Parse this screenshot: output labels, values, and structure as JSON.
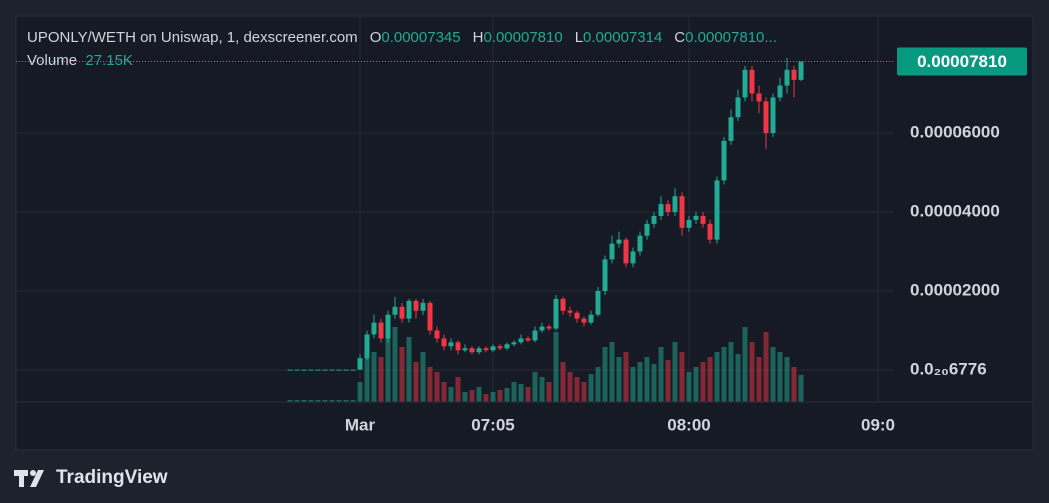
{
  "chart_data": {
    "type": "candlestick",
    "title": "UPONLY/WETH on Uniswap, 1, dexscreener.com",
    "ohlc_legend": [
      {
        "key": "O",
        "value": "0.00007345"
      },
      {
        "key": "H",
        "value": "0.00007810"
      },
      {
        "key": "L",
        "value": "0.00007314"
      },
      {
        "key": "C",
        "value": "0.00007810..."
      }
    ],
    "volume_label": "Volume",
    "volume_value_label": "27.15K",
    "categories": [
      null,
      null,
      null,
      null,
      null,
      null,
      null,
      null,
      null,
      null,
      "Mar",
      null,
      null,
      null,
      null,
      null,
      null,
      null,
      null,
      null,
      null,
      null,
      null,
      null,
      null,
      null,
      null,
      null,
      null,
      "07:05",
      null,
      null,
      null,
      null,
      null,
      null,
      null,
      null,
      null,
      null,
      null,
      null,
      null,
      null,
      null,
      null,
      null,
      null,
      null,
      null,
      null,
      null,
      null,
      null,
      null,
      null,
      null,
      "08:00",
      null,
      null,
      null,
      null,
      null,
      null,
      null,
      null,
      null,
      null,
      null,
      null,
      null,
      null,
      null,
      null,
      null,
      null,
      null,
      null,
      null,
      null,
      null,
      null,
      null,
      null,
      "09:0"
    ],
    "open": [
      1e-07,
      1e-07,
      1e-07,
      1e-07,
      1e-07,
      1e-07,
      1e-07,
      1e-07,
      1e-07,
      1e-07,
      1e-07,
      3e-06,
      9e-06,
      1.2e-05,
      8e-06,
      1.4e-05,
      1.6e-05,
      1.3e-05,
      1.75e-05,
      1.5e-05,
      1.7e-05,
      1e-05,
      8e-06,
      6e-06,
      7e-06,
      5e-06,
      5.5e-06,
      4.5e-06,
      5.5e-06,
      5e-06,
      6e-06,
      5.5e-06,
      6.5e-06,
      7e-06,
      8e-06,
      7.5e-06,
      1e-05,
      1.1e-05,
      1.05e-05,
      1.8e-05,
      1.5e-05,
      1.45e-05,
      1.3e-05,
      1.2e-05,
      1.4e-05,
      2e-05,
      2.8e-05,
      3.2e-05,
      3.3e-05,
      2.7e-05,
      3e-05,
      3.4e-05,
      3.7e-05,
      3.9e-05,
      4.2e-05,
      4e-05,
      4.4e-05,
      3.6e-05,
      3.8e-05,
      3.9e-05,
      3.7e-05,
      3.3e-05,
      4.8e-05,
      5.8e-05,
      6.4e-05,
      6.9e-05,
      7.6e-05,
      7e-05,
      6.8e-05,
      6e-05,
      6.9e-05,
      7.2e-05,
      7.6e-05,
      7.345e-05,
      null,
      null,
      null,
      null,
      null,
      null,
      null,
      null,
      null,
      null,
      null
    ],
    "high": [
      1e-07,
      1e-07,
      1e-07,
      1e-07,
      1e-07,
      1e-07,
      1e-07,
      1e-07,
      1e-07,
      1e-07,
      4e-06,
      1e-05,
      1.4e-05,
      1.3e-05,
      1.5e-05,
      1.85e-05,
      1.7e-05,
      1.8e-05,
      1.8e-05,
      1.8e-05,
      1.75e-05,
      1.1e-05,
      9e-06,
      8e-06,
      7.5e-06,
      6.5e-06,
      6e-06,
      6e-06,
      6e-06,
      6.5e-06,
      6.5e-06,
      7e-06,
      7.5e-06,
      9e-06,
      8.5e-06,
      1.1e-05,
      1.2e-05,
      1.15e-05,
      1.9e-05,
      1.85e-05,
      1.6e-05,
      1.5e-05,
      1.35e-05,
      1.5e-05,
      2.1e-05,
      2.9e-05,
      3.4e-05,
      3.5e-05,
      3.35e-05,
      3.1e-05,
      3.5e-05,
      3.8e-05,
      4e-05,
      4.4e-05,
      4.3e-05,
      4.6e-05,
      4.5e-05,
      3.9e-05,
      4e-05,
      4e-05,
      3.8e-05,
      4.9e-05,
      5.9e-05,
      6.6e-05,
      7.1e-05,
      7.7e-05,
      7.7e-05,
      7.2e-05,
      6.9e-05,
      7e-05,
      7.4e-05,
      7.9e-05,
      7.7e-05,
      7.81e-05,
      null,
      null,
      null,
      null,
      null,
      null,
      null,
      null,
      null,
      null,
      null
    ],
    "low": [
      1e-07,
      1e-07,
      1e-07,
      1e-07,
      1e-07,
      1e-07,
      1e-07,
      1e-07,
      1e-07,
      1e-07,
      1e-07,
      2.5e-06,
      8e-06,
      7e-06,
      7e-06,
      1.3e-05,
      1.2e-05,
      1.2e-05,
      1.3e-05,
      1.4e-05,
      9e-06,
      7e-06,
      5e-06,
      5e-06,
      4e-06,
      4.5e-06,
      4e-06,
      4e-06,
      4.5e-06,
      4.5e-06,
      5e-06,
      5e-06,
      6e-06,
      6.5e-06,
      7e-06,
      7e-06,
      9.5e-06,
      1e-05,
      1e-05,
      1.4e-05,
      1.35e-05,
      1.2e-05,
      1.1e-05,
      1.15e-05,
      1.35e-05,
      1.9e-05,
      2.7e-05,
      3.1e-05,
      2.6e-05,
      2.6e-05,
      2.9e-05,
      3.3e-05,
      3.6e-05,
      3.8e-05,
      3.9e-05,
      3.9e-05,
      3.4e-05,
      3.5e-05,
      3.7e-05,
      3.6e-05,
      3.2e-05,
      3.2e-05,
      4.7e-05,
      5.7e-05,
      6.3e-05,
      6.8e-05,
      6.8e-05,
      6.5e-05,
      5.6e-05,
      5.9e-05,
      6.8e-05,
      7e-05,
      6.9e-05,
      7.314e-05,
      null,
      null,
      null,
      null,
      null,
      null,
      null,
      null,
      null,
      null,
      null
    ],
    "close": [
      1e-07,
      1e-07,
      1e-07,
      1e-07,
      1e-07,
      1e-07,
      1e-07,
      1e-07,
      1e-07,
      1e-07,
      3e-06,
      9e-06,
      1.2e-05,
      8e-06,
      1.4e-05,
      1.6e-05,
      1.3e-05,
      1.75e-05,
      1.5e-05,
      1.7e-05,
      1e-05,
      8e-06,
      6e-06,
      7e-06,
      5e-06,
      5.5e-06,
      4.5e-06,
      5.5e-06,
      5e-06,
      6e-06,
      5.5e-06,
      6.5e-06,
      7e-06,
      8e-06,
      7.5e-06,
      1e-05,
      1.1e-05,
      1.05e-05,
      1.8e-05,
      1.5e-05,
      1.45e-05,
      1.3e-05,
      1.2e-05,
      1.4e-05,
      2e-05,
      2.8e-05,
      3.2e-05,
      3.3e-05,
      2.7e-05,
      3e-05,
      3.4e-05,
      3.7e-05,
      3.9e-05,
      4.2e-05,
      4e-05,
      4.4e-05,
      3.6e-05,
      3.8e-05,
      3.9e-05,
      3.7e-05,
      3.3e-05,
      4.8e-05,
      5.8e-05,
      6.4e-05,
      6.9e-05,
      7.6e-05,
      7e-05,
      6.8e-05,
      6e-05,
      6.9e-05,
      7.2e-05,
      7.6e-05,
      7.345e-05,
      7.81e-05,
      null,
      null,
      null,
      null,
      null,
      null,
      null,
      null,
      null,
      null,
      null
    ],
    "volume": [
      2000,
      2000,
      2000,
      2000,
      2000,
      2000,
      2000,
      2000,
      2000,
      2000,
      20000,
      60000,
      50000,
      45000,
      70000,
      75000,
      55000,
      65000,
      40000,
      50000,
      35000,
      30000,
      20000,
      15000,
      25000,
      10000,
      12000,
      15000,
      8000,
      10000,
      12000,
      14000,
      20000,
      18000,
      15000,
      30000,
      25000,
      20000,
      70000,
      40000,
      30000,
      25000,
      20000,
      28000,
      35000,
      55000,
      60000,
      45000,
      50000,
      35000,
      40000,
      45000,
      38000,
      55000,
      42000,
      60000,
      50000,
      30000,
      35000,
      40000,
      45000,
      50000,
      55000,
      60000,
      48000,
      75000,
      60000,
      45000,
      70000,
      55000,
      50000,
      45000,
      35000,
      27150,
      null,
      null,
      null,
      null,
      null,
      null,
      null,
      null,
      null,
      null,
      null
    ],
    "up_color": "#22ab94",
    "down_color": "#f23645",
    "ylim": [
      -8.1e-06,
      8.962e-05
    ],
    "yticks": [
      {
        "value": 6.776e-22,
        "label": "0.0₂₀6776"
      },
      {
        "value": 2e-05,
        "label": "0.00002000"
      },
      {
        "value": 4e-05,
        "label": "0.00004000"
      },
      {
        "value": 6e-05,
        "label": "0.00006000"
      }
    ],
    "last_price": {
      "value": 7.81e-05,
      "label": "0.00007810"
    },
    "grid": true,
    "branding": "TradingView"
  }
}
